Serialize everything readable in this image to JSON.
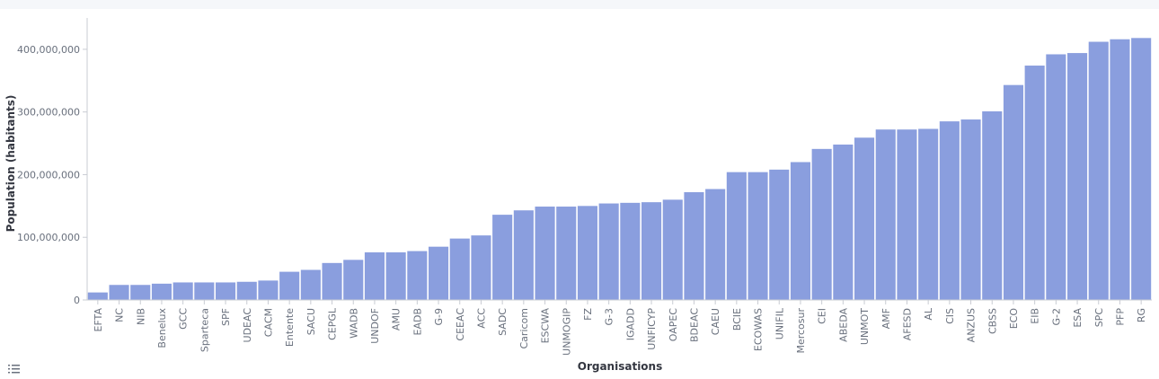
{
  "chart_data": {
    "type": "bar",
    "xlabel": "Organisations",
    "ylabel": "Population (habitants)",
    "ylim": [
      0,
      450000000
    ],
    "yticks": [
      0,
      100000000,
      200000000,
      300000000,
      400000000
    ],
    "grid": false,
    "bar_color": "#8a9ede",
    "categories": [
      "EFTA",
      "NC",
      "NIB",
      "Benelux",
      "GCC",
      "Sparteca",
      "SPF",
      "UDEAC",
      "CACM",
      "Entente",
      "SACU",
      "CEPGL",
      "WADB",
      "UNDOF",
      "AMU",
      "EADB",
      "G-9",
      "CEEAC",
      "ACC",
      "SADC",
      "Caricom",
      "ESCWA",
      "UNMOGIP",
      "FZ",
      "G-3",
      "IGADD",
      "UNFICYP",
      "OAPEC",
      "BDEAC",
      "CAEU",
      "BCIE",
      "ECOWAS",
      "UNIFIL",
      "Mercosur",
      "CEI",
      "ABEDA",
      "UNMOT",
      "AMF",
      "AFESD",
      "AL",
      "CIS",
      "ANZUS",
      "CBSS",
      "ECO",
      "EIB",
      "G-2",
      "ESA",
      "SPC",
      "PFP",
      "RG"
    ],
    "values": [
      12000000,
      24000000,
      24000000,
      26000000,
      28000000,
      28000000,
      28000000,
      29000000,
      31000000,
      45000000,
      48000000,
      59000000,
      64000000,
      76000000,
      76000000,
      78000000,
      85000000,
      98000000,
      103000000,
      136000000,
      143000000,
      149000000,
      149000000,
      150000000,
      154000000,
      155000000,
      156000000,
      160000000,
      172000000,
      177000000,
      204000000,
      204000000,
      208000000,
      220000000,
      241000000,
      248000000,
      259000000,
      272000000,
      272000000,
      273000000,
      285000000,
      288000000,
      301000000,
      343000000,
      374000000,
      392000000,
      394000000,
      412000000,
      416000000,
      418000000
    ]
  },
  "legend_toggle_icon": "list-icon"
}
